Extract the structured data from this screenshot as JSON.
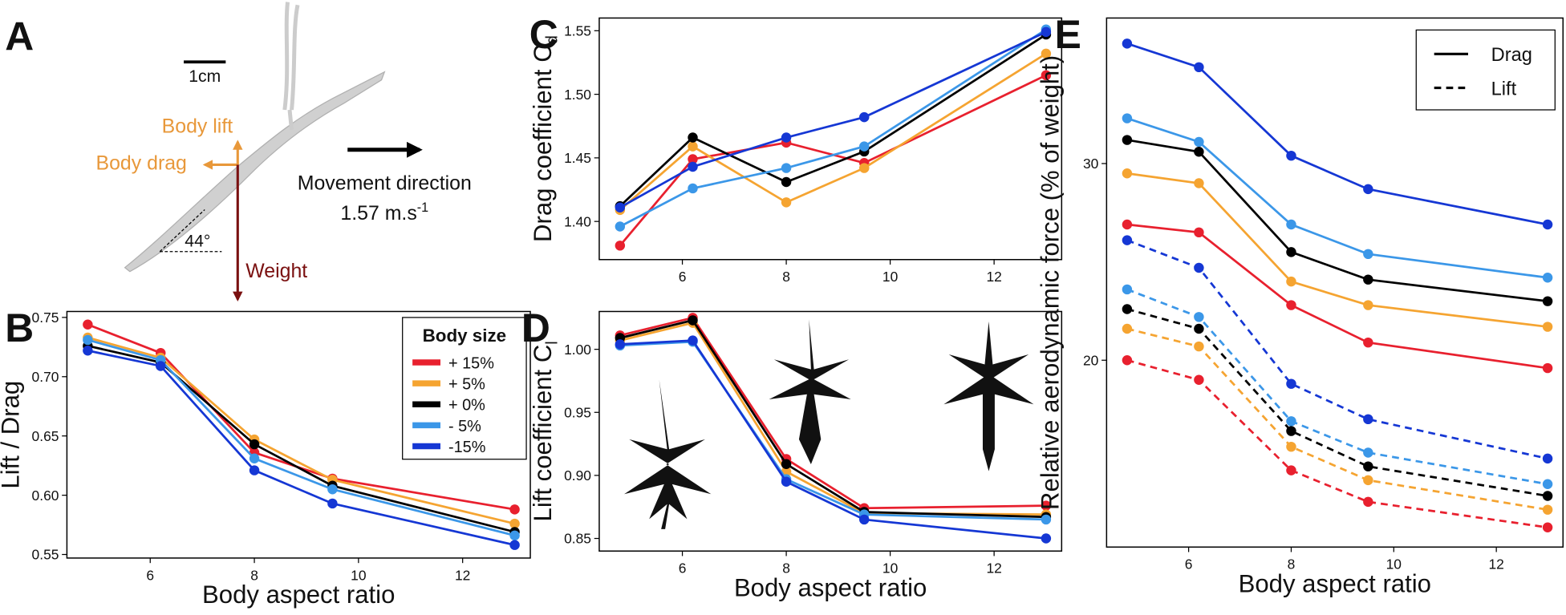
{
  "diagram": {
    "panel": "A",
    "scale_label": "1cm",
    "lift_label": "Body lift",
    "drag_label": "Body drag",
    "movement_label": "Movement direction",
    "speed_label": "1.57 m.s",
    "speed_unit_sup": "-1",
    "angle_label": "44°",
    "weight_label": "Weight"
  },
  "chart_data": [
    {
      "type": "line",
      "panel": "B",
      "xlabel": "Body aspect ratio",
      "ylabel": "Lift / Drag",
      "x": [
        4.8,
        6.2,
        8,
        9.5,
        13
      ],
      "xlim": [
        4.4,
        13.3
      ],
      "xticks": [
        6,
        8,
        10,
        12
      ],
      "ylim": [
        0.547,
        0.755
      ],
      "yticks": [
        0.55,
        {
          "value": 0.6,
          "label": "0.60"
        },
        0.65,
        {
          "value": 0.7,
          "label": "0.70"
        },
        0.75
      ],
      "legend_title": "Body size",
      "legend": "upper right",
      "series": [
        {
          "name": "+ 15%",
          "color": "#e8202e",
          "values": [
            0.744,
            0.72,
            0.636,
            0.614,
            0.588
          ]
        },
        {
          "name": "+ 5%",
          "color": "#f5a431",
          "values": [
            0.733,
            0.716,
            0.647,
            0.613,
            0.576
          ]
        },
        {
          "name": "+ 0%",
          "color": "#000000",
          "values": [
            0.726,
            0.712,
            0.643,
            0.608,
            0.569
          ]
        },
        {
          "name": "- 5%",
          "color": "#3b97e8",
          "values": [
            0.731,
            0.714,
            0.631,
            0.605,
            0.566
          ]
        },
        {
          "name": "-15%",
          "color": "#1537d4",
          "values": [
            0.722,
            0.709,
            0.621,
            0.593,
            0.558
          ]
        }
      ]
    },
    {
      "type": "line",
      "panel": "C",
      "ylabel": "Drag coefficient C",
      "ylabel_sub": "d",
      "x": [
        4.8,
        6.2,
        8,
        9.5,
        13
      ],
      "xlim": [
        4.4,
        13.3
      ],
      "xticks": [
        6,
        8,
        10,
        12
      ],
      "ylim": [
        1.37,
        1.56
      ],
      "yticks": [
        {
          "value": 1.4,
          "label": "1.40"
        },
        1.45,
        {
          "value": 1.5,
          "label": "1.50"
        },
        1.55
      ],
      "series": [
        {
          "color": "#e8202e",
          "values": [
            1.381,
            1.449,
            1.462,
            1.446,
            1.515
          ]
        },
        {
          "color": "#f5a431",
          "values": [
            1.409,
            1.459,
            1.415,
            1.442,
            1.532
          ]
        },
        {
          "color": "#000000",
          "values": [
            1.412,
            1.466,
            1.431,
            1.455,
            1.547
          ]
        },
        {
          "color": "#3b97e8",
          "values": [
            1.396,
            1.426,
            1.442,
            1.459,
            1.551
          ]
        },
        {
          "color": "#1537d4",
          "values": [
            1.411,
            1.443,
            1.466,
            1.482,
            1.549
          ]
        }
      ]
    },
    {
      "type": "line",
      "panel": "D",
      "xlabel": "Body aspect ratio",
      "ylabel": "Lift coefficient C",
      "ylabel_sub": "l",
      "x": [
        4.8,
        6.2,
        8,
        9.5,
        13
      ],
      "xlim": [
        4.4,
        13.3
      ],
      "xticks": [
        6,
        8,
        10,
        12
      ],
      "ylim": [
        0.84,
        1.03
      ],
      "yticks": [
        0.85,
        {
          "value": 0.9,
          "label": "0.90"
        },
        0.95,
        {
          "value": 1.0,
          "label": "1.00"
        }
      ],
      "series": [
        {
          "color": "#e8202e",
          "values": [
            1.011,
            1.025,
            0.913,
            0.874,
            0.876
          ]
        },
        {
          "color": "#f5a431",
          "values": [
            1.007,
            1.021,
            0.903,
            0.87,
            0.869
          ]
        },
        {
          "color": "#000000",
          "values": [
            1.009,
            1.023,
            0.909,
            0.871,
            0.867
          ]
        },
        {
          "color": "#3b97e8",
          "values": [
            1.003,
            1.006,
            0.897,
            0.869,
            0.865
          ]
        },
        {
          "color": "#1537d4",
          "values": [
            1.004,
            1.007,
            0.895,
            0.865,
            0.85
          ]
        }
      ]
    },
    {
      "type": "line",
      "panel": "E",
      "xlabel": "Body aspect ratio",
      "ylabel": "Relative aerodynamic force (% of weight)",
      "x": [
        4.8,
        6.2,
        8,
        9.5,
        13
      ],
      "xlim": [
        4.4,
        13.3
      ],
      "xticks": [
        6,
        8,
        10,
        12
      ],
      "ylim": [
        10.5,
        37.4
      ],
      "yticks": [
        20,
        30
      ],
      "style_legend": [
        {
          "label": "Drag",
          "dashed": false
        },
        {
          "label": "Lift",
          "dashed": true
        }
      ],
      "series": [
        {
          "color": "#1537d4",
          "style": 0,
          "values": [
            36.1,
            34.9,
            30.4,
            28.7,
            26.9
          ]
        },
        {
          "color": "#3b97e8",
          "style": 0,
          "values": [
            32.3,
            31.1,
            26.9,
            25.4,
            24.2
          ]
        },
        {
          "color": "#000000",
          "style": 0,
          "values": [
            31.2,
            30.6,
            25.5,
            24.1,
            23.0
          ]
        },
        {
          "color": "#f5a431",
          "style": 0,
          "values": [
            29.5,
            29.0,
            24.0,
            22.8,
            21.7
          ]
        },
        {
          "color": "#e8202e",
          "style": 0,
          "values": [
            26.9,
            26.5,
            22.8,
            20.9,
            19.6
          ]
        },
        {
          "color": "#1537d4",
          "style": 1,
          "values": [
            26.1,
            24.7,
            18.8,
            17.0,
            15.0
          ]
        },
        {
          "color": "#3b97e8",
          "style": 1,
          "values": [
            23.6,
            22.2,
            16.9,
            15.3,
            13.7
          ]
        },
        {
          "color": "#000000",
          "style": 1,
          "values": [
            22.6,
            21.6,
            16.4,
            14.6,
            13.1
          ]
        },
        {
          "color": "#f5a431",
          "style": 1,
          "values": [
            21.6,
            20.7,
            15.6,
            13.9,
            12.4
          ]
        },
        {
          "color": "#e8202e",
          "style": 1,
          "values": [
            20.0,
            19.0,
            14.4,
            12.8,
            11.5
          ]
        }
      ]
    }
  ]
}
